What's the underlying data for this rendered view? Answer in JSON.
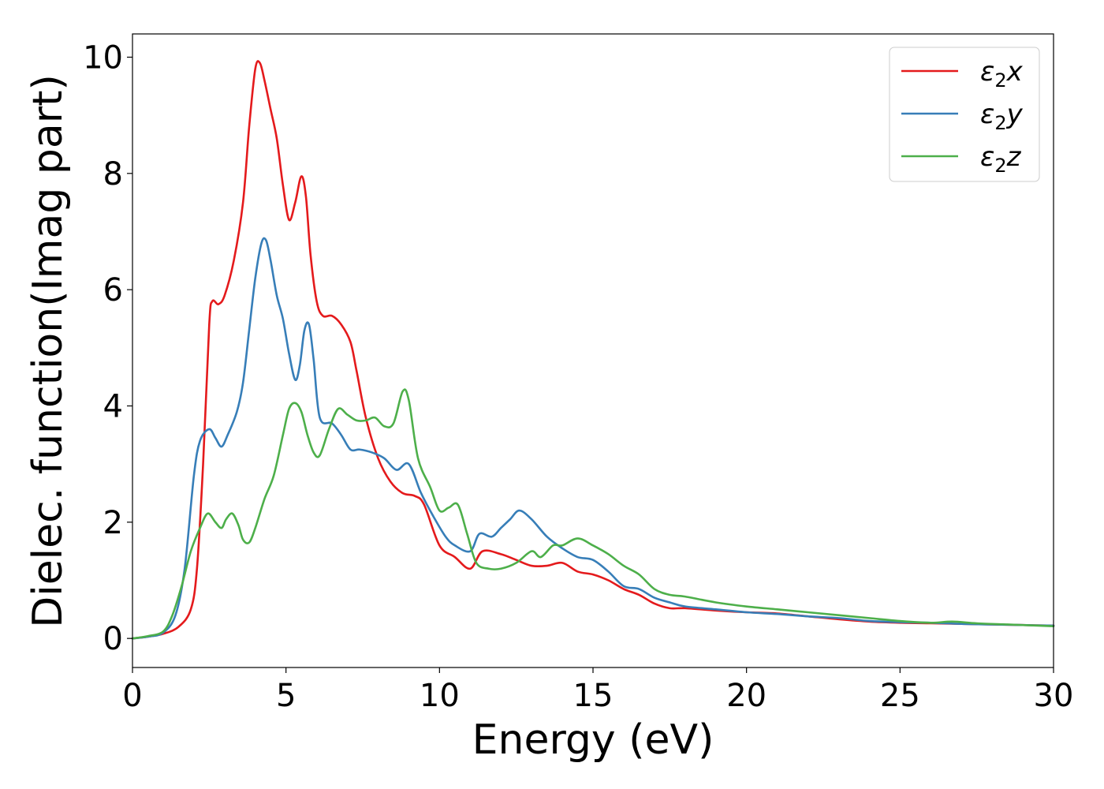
{
  "chart_data": {
    "type": "line",
    "xlabel": "Energy (eV)",
    "ylabel": "Dielec. function(Imag part)",
    "xlim": [
      0,
      30
    ],
    "ylim": [
      -0.5,
      10.4
    ],
    "xticks": [
      "0",
      "5",
      "10",
      "15",
      "20",
      "25",
      "30"
    ],
    "yticks": [
      "0",
      "2",
      "4",
      "6",
      "8",
      "10"
    ],
    "grid": false,
    "legend_position": "top-right",
    "series": [
      {
        "name": "ε2x",
        "legend_base": "ε",
        "legend_sub": "2",
        "legend_suffix": "x",
        "color": "#e41a1c",
        "points": [
          [
            0,
            0
          ],
          [
            0.5,
            0.03
          ],
          [
            1.0,
            0.08
          ],
          [
            1.5,
            0.2
          ],
          [
            1.9,
            0.5
          ],
          [
            2.1,
            1.2
          ],
          [
            2.3,
            3.0
          ],
          [
            2.5,
            5.4
          ],
          [
            2.6,
            5.8
          ],
          [
            2.8,
            5.75
          ],
          [
            3.0,
            5.9
          ],
          [
            3.3,
            6.5
          ],
          [
            3.6,
            7.5
          ],
          [
            3.8,
            8.8
          ],
          [
            4.0,
            9.8
          ],
          [
            4.15,
            9.9
          ],
          [
            4.3,
            9.6
          ],
          [
            4.5,
            9.1
          ],
          [
            4.7,
            8.6
          ],
          [
            4.9,
            7.8
          ],
          [
            5.1,
            7.2
          ],
          [
            5.3,
            7.5
          ],
          [
            5.5,
            7.95
          ],
          [
            5.65,
            7.6
          ],
          [
            5.8,
            6.6
          ],
          [
            6.0,
            5.8
          ],
          [
            6.2,
            5.55
          ],
          [
            6.5,
            5.55
          ],
          [
            6.8,
            5.4
          ],
          [
            7.1,
            5.1
          ],
          [
            7.3,
            4.6
          ],
          [
            7.6,
            3.8
          ],
          [
            8.0,
            3.1
          ],
          [
            8.4,
            2.7
          ],
          [
            8.8,
            2.5
          ],
          [
            9.2,
            2.45
          ],
          [
            9.5,
            2.3
          ],
          [
            10.0,
            1.6
          ],
          [
            10.5,
            1.4
          ],
          [
            11.0,
            1.2
          ],
          [
            11.4,
            1.5
          ],
          [
            12.0,
            1.45
          ],
          [
            12.5,
            1.35
          ],
          [
            13.0,
            1.25
          ],
          [
            13.5,
            1.25
          ],
          [
            14.0,
            1.3
          ],
          [
            14.5,
            1.15
          ],
          [
            15.0,
            1.1
          ],
          [
            15.5,
            1.0
          ],
          [
            16.0,
            0.85
          ],
          [
            16.5,
            0.75
          ],
          [
            17.0,
            0.6
          ],
          [
            17.5,
            0.52
          ],
          [
            18.0,
            0.52
          ],
          [
            19.0,
            0.48
          ],
          [
            20.0,
            0.45
          ],
          [
            21.0,
            0.43
          ],
          [
            22.0,
            0.38
          ],
          [
            23.0,
            0.33
          ],
          [
            24.0,
            0.29
          ],
          [
            25.0,
            0.27
          ],
          [
            26.0,
            0.26
          ],
          [
            27.0,
            0.25
          ],
          [
            28.0,
            0.24
          ],
          [
            29.0,
            0.23
          ],
          [
            30.0,
            0.22
          ]
        ]
      },
      {
        "name": "ε2y",
        "legend_base": "ε",
        "legend_sub": "2",
        "legend_suffix": "y",
        "color": "#377eb8",
        "points": [
          [
            0,
            0
          ],
          [
            0.5,
            0.03
          ],
          [
            1.0,
            0.1
          ],
          [
            1.4,
            0.4
          ],
          [
            1.7,
            1.2
          ],
          [
            2.0,
            2.8
          ],
          [
            2.2,
            3.4
          ],
          [
            2.5,
            3.6
          ],
          [
            2.7,
            3.45
          ],
          [
            2.9,
            3.3
          ],
          [
            3.1,
            3.5
          ],
          [
            3.4,
            3.9
          ],
          [
            3.6,
            4.4
          ],
          [
            3.8,
            5.3
          ],
          [
            4.0,
            6.2
          ],
          [
            4.2,
            6.8
          ],
          [
            4.35,
            6.85
          ],
          [
            4.5,
            6.5
          ],
          [
            4.7,
            5.9
          ],
          [
            4.9,
            5.5
          ],
          [
            5.1,
            4.9
          ],
          [
            5.3,
            4.45
          ],
          [
            5.45,
            4.7
          ],
          [
            5.6,
            5.3
          ],
          [
            5.75,
            5.4
          ],
          [
            5.9,
            4.8
          ],
          [
            6.1,
            3.8
          ],
          [
            6.5,
            3.7
          ],
          [
            6.8,
            3.5
          ],
          [
            7.1,
            3.25
          ],
          [
            7.4,
            3.25
          ],
          [
            7.8,
            3.2
          ],
          [
            8.2,
            3.1
          ],
          [
            8.6,
            2.9
          ],
          [
            9.0,
            3.0
          ],
          [
            9.4,
            2.5
          ],
          [
            9.8,
            2.1
          ],
          [
            10.2,
            1.75
          ],
          [
            10.5,
            1.6
          ],
          [
            11.0,
            1.5
          ],
          [
            11.3,
            1.8
          ],
          [
            11.7,
            1.75
          ],
          [
            12.0,
            1.9
          ],
          [
            12.3,
            2.05
          ],
          [
            12.6,
            2.2
          ],
          [
            13.0,
            2.05
          ],
          [
            13.5,
            1.75
          ],
          [
            14.0,
            1.55
          ],
          [
            14.5,
            1.4
          ],
          [
            15.0,
            1.35
          ],
          [
            15.5,
            1.15
          ],
          [
            16.0,
            0.9
          ],
          [
            16.5,
            0.85
          ],
          [
            17.0,
            0.7
          ],
          [
            17.5,
            0.62
          ],
          [
            18.0,
            0.55
          ],
          [
            19.0,
            0.5
          ],
          [
            20.0,
            0.45
          ],
          [
            21.0,
            0.42
          ],
          [
            22.0,
            0.38
          ],
          [
            23.0,
            0.35
          ],
          [
            24.0,
            0.3
          ],
          [
            25.0,
            0.28
          ],
          [
            26.0,
            0.27
          ],
          [
            27.0,
            0.25
          ],
          [
            28.0,
            0.24
          ],
          [
            29.0,
            0.23
          ],
          [
            30.0,
            0.22
          ]
        ]
      },
      {
        "name": "ε2z",
        "legend_base": "ε",
        "legend_sub": "2",
        "legend_suffix": "z",
        "color": "#4daf4a",
        "points": [
          [
            0,
            0
          ],
          [
            0.5,
            0.04
          ],
          [
            1.0,
            0.12
          ],
          [
            1.3,
            0.4
          ],
          [
            1.6,
            0.9
          ],
          [
            1.9,
            1.5
          ],
          [
            2.2,
            1.9
          ],
          [
            2.45,
            2.15
          ],
          [
            2.7,
            2.0
          ],
          [
            2.9,
            1.9
          ],
          [
            3.05,
            2.05
          ],
          [
            3.25,
            2.15
          ],
          [
            3.45,
            1.95
          ],
          [
            3.6,
            1.7
          ],
          [
            3.8,
            1.65
          ],
          [
            4.0,
            1.9
          ],
          [
            4.3,
            2.4
          ],
          [
            4.6,
            2.8
          ],
          [
            4.9,
            3.5
          ],
          [
            5.1,
            3.95
          ],
          [
            5.3,
            4.05
          ],
          [
            5.5,
            3.9
          ],
          [
            5.7,
            3.5
          ],
          [
            5.9,
            3.2
          ],
          [
            6.1,
            3.15
          ],
          [
            6.4,
            3.6
          ],
          [
            6.7,
            3.95
          ],
          [
            7.0,
            3.85
          ],
          [
            7.3,
            3.75
          ],
          [
            7.6,
            3.75
          ],
          [
            7.9,
            3.8
          ],
          [
            8.2,
            3.65
          ],
          [
            8.5,
            3.7
          ],
          [
            8.8,
            4.25
          ],
          [
            9.0,
            4.1
          ],
          [
            9.3,
            3.1
          ],
          [
            9.7,
            2.6
          ],
          [
            10.0,
            2.2
          ],
          [
            10.3,
            2.25
          ],
          [
            10.6,
            2.3
          ],
          [
            10.9,
            1.8
          ],
          [
            11.2,
            1.3
          ],
          [
            11.6,
            1.2
          ],
          [
            12.0,
            1.2
          ],
          [
            12.5,
            1.3
          ],
          [
            13.0,
            1.5
          ],
          [
            13.3,
            1.4
          ],
          [
            13.7,
            1.6
          ],
          [
            14.0,
            1.6
          ],
          [
            14.5,
            1.72
          ],
          [
            15.0,
            1.6
          ],
          [
            15.5,
            1.45
          ],
          [
            16.0,
            1.25
          ],
          [
            16.5,
            1.1
          ],
          [
            17.0,
            0.85
          ],
          [
            17.5,
            0.75
          ],
          [
            18.0,
            0.72
          ],
          [
            19.0,
            0.62
          ],
          [
            20.0,
            0.55
          ],
          [
            21.0,
            0.5
          ],
          [
            22.0,
            0.45
          ],
          [
            23.0,
            0.4
          ],
          [
            24.0,
            0.35
          ],
          [
            25.0,
            0.3
          ],
          [
            26.0,
            0.27
          ],
          [
            26.7,
            0.29
          ],
          [
            27.5,
            0.26
          ],
          [
            28.5,
            0.24
          ],
          [
            29.5,
            0.22
          ],
          [
            30.0,
            0.21
          ]
        ]
      }
    ]
  }
}
